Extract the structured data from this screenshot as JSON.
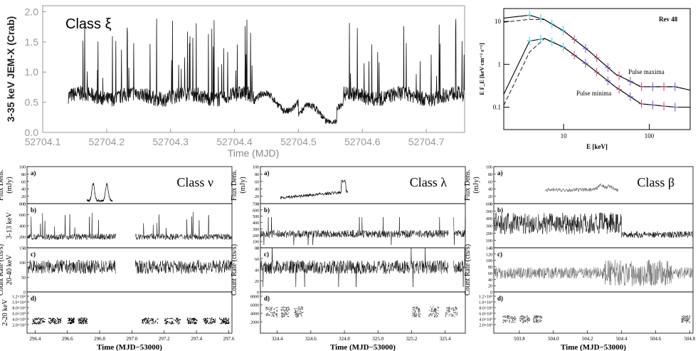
{
  "top_left": {
    "label": "Class ξ",
    "ylabel": "3-35 keV JEM-X (Crab)",
    "xlabel": "Time (MJD)",
    "xticks": [
      "52704.1",
      "52704.2",
      "52704.3",
      "52704.4",
      "52704.5",
      "52704.6",
      "52704.7"
    ],
    "yticks": [
      "0.0",
      "0.5",
      "1.0",
      "1.5",
      "2.0"
    ]
  },
  "top_right": {
    "label": "Rev 48",
    "ylabel": "E F_E [keV cm⁻² s⁻¹]",
    "xlabel": "E [keV]",
    "yticks": [
      "10",
      "1",
      "0.1"
    ],
    "xticks": [
      "10",
      "100"
    ],
    "annot_max": "Pulse maxima",
    "annot_min": "Pulse minima"
  },
  "panels": [
    {
      "class_label": "Class ν",
      "xlabel": "Time (MJD−53000)",
      "xticks": [
        "296.4",
        "296.6",
        "296.8",
        "297.0",
        "297.2",
        "297.4",
        "297.6"
      ],
      "sub_a": "a)",
      "sub_b": "b)",
      "sub_c": "c)",
      "sub_d": "d)",
      "ylab_a1": "Flux Dens.",
      "ylab_a2": "(mJy)",
      "ylab_b": "3-13 keV",
      "ylab_cr": "Count Rate (cts/s)",
      "ylab_c": "20-40 keV",
      "ylab_d": "2-20 keV",
      "yt_a": [
        "100",
        "80",
        "60",
        "40",
        "20",
        "0"
      ],
      "yt_b": [
        "800",
        "600",
        "400",
        "200",
        "0"
      ],
      "yt_c": [
        "150",
        "100",
        "50",
        "0"
      ],
      "yt_d": [
        "1.2×10⁴",
        "1.0×10⁴",
        "8.0×10³",
        "6.0×10³",
        "4.0×10³",
        "2.0×10³"
      ]
    },
    {
      "class_label": "Class λ",
      "xlabel": "Time (MJD−53000)",
      "xticks": [
        "324.4",
        "324.6",
        "324.8",
        "325.0",
        "325.2",
        "325.4"
      ],
      "sub_a": "a)",
      "sub_b": "b)",
      "sub_c": "c)",
      "sub_d": "d)",
      "ylab_a1": "Flux Dens.",
      "ylab_a2": "(mJy)",
      "ylab_cr": "Count Rate (cts/s)",
      "yt_a": [
        "100",
        "80",
        "60",
        "40",
        "20",
        "0"
      ],
      "yt_b": [
        "700",
        "600",
        "500",
        "400",
        "300",
        "200",
        "100",
        "0"
      ],
      "yt_c": [
        "80",
        "60",
        "40",
        "20",
        "0"
      ],
      "yt_d": [
        "8000",
        "6000",
        "4000",
        "2000"
      ]
    },
    {
      "class_label": "Class β",
      "xlabel": "Time (MJD−53000)",
      "xticks": [
        "503.8",
        "504.0",
        "504.2",
        "504.4",
        "504.6",
        "504.8"
      ],
      "sub_a": "a)",
      "sub_b": "b)",
      "sub_c": "c)",
      "sub_d": "d)",
      "ylab_a1": "Flux Dens.",
      "ylab_a2": "(mJy)",
      "ylab_cr": "Count Rate (cts/s)",
      "yt_a": [
        "100",
        "80",
        "60",
        "40",
        "20",
        "0"
      ],
      "yt_b": [
        "600",
        "500",
        "400",
        "300",
        "200",
        "100",
        "0"
      ],
      "yt_c": [
        "140",
        "120",
        "100",
        "80",
        "60",
        "40",
        "20",
        "0"
      ],
      "yt_d": [
        "1.2×10⁴",
        "1.0×10⁴",
        "8.0×10³",
        "6.0×10³",
        "4.0×10³",
        "2.0×10³"
      ]
    }
  ],
  "chart_data": [
    {
      "type": "line",
      "title": "Class ξ",
      "xlabel": "Time (MJD)",
      "ylabel": "3-35 keV JEM-X (Crab)",
      "xlim": [
        52704.1,
        52704.76
      ],
      "ylim": [
        0,
        2.1
      ],
      "series": [
        {
          "x_range": [
            52704.14,
            52704.76
          ],
          "baseline": 0.6,
          "peak_max": 2.0
        }
      ]
    },
    {
      "type": "line",
      "title": "Rev 48",
      "xlabel": "E [keV]",
      "ylabel": "E F_E [keV cm⁻² s⁻¹]",
      "xscale": "log",
      "yscale": "log",
      "xlim": [
        2,
        300
      ],
      "ylim": [
        0.03,
        20
      ],
      "series": [
        {
          "name": "Pulse maxima",
          "x": [
            2,
            4,
            6,
            10,
            20,
            40,
            80,
            200,
            300
          ],
          "y": [
            12,
            14,
            11,
            6,
            2.0,
            0.6,
            0.3,
            0.3,
            0.25
          ]
        },
        {
          "name": "Pulse minima",
          "x": [
            2,
            4,
            6,
            10,
            20,
            40,
            80,
            200,
            300
          ],
          "y": [
            0.2,
            3.5,
            4.0,
            2.5,
            0.9,
            0.3,
            0.12,
            0.1,
            0.1
          ]
        }
      ]
    },
    {
      "type": "line",
      "title": "Class ν",
      "xlabel": "Time (MJD−53000)",
      "xlim": [
        296.35,
        297.62
      ],
      "series": [
        {
          "panel": "a",
          "ylabel": "Flux Dens. (mJy)",
          "ylim": [
            0,
            100
          ],
          "flare_peaks_x": [
            296.76,
            296.84
          ],
          "peak": 50
        },
        {
          "panel": "b",
          "ylabel": "3-13 keV Count Rate (cts/s)",
          "ylim": [
            0,
            800
          ],
          "baseline": 200
        },
        {
          "panel": "c",
          "ylabel": "20-40 keV Count Rate (cts/s)",
          "ylim": [
            0,
            150
          ],
          "baseline": 85
        },
        {
          "panel": "d",
          "ylabel": "2-20 keV Count Rate (cts/s)",
          "ylim": [
            0,
            12000
          ],
          "baseline": 3500
        }
      ]
    },
    {
      "type": "line",
      "title": "Class λ",
      "xlabel": "Time (MJD−53000)",
      "xlim": [
        324.3,
        325.52
      ],
      "series": [
        {
          "panel": "a",
          "ylabel": "Flux Dens. (mJy)",
          "ylim": [
            0,
            100
          ],
          "peak": 50
        },
        {
          "panel": "b",
          "ylabel": "Count Rate (cts/s)",
          "ylim": [
            0,
            700
          ],
          "baseline": 220
        },
        {
          "panel": "c",
          "ylabel": "Count Rate (cts/s)",
          "ylim": [
            0,
            80
          ],
          "baseline": 45
        },
        {
          "panel": "d",
          "ylabel": "Count Rate (cts/s)",
          "ylim": [
            0,
            8000
          ],
          "baseline": 4000
        }
      ]
    },
    {
      "type": "line",
      "title": "Class β",
      "xlabel": "Time (MJD−53000)",
      "xlim": [
        503.65,
        504.82
      ],
      "series": [
        {
          "panel": "a",
          "ylabel": "Flux Dens. (mJy)",
          "ylim": [
            0,
            100
          ],
          "baseline": 35
        },
        {
          "panel": "b",
          "ylabel": "Count Rate (cts/s)",
          "ylim": [
            0,
            600
          ],
          "baseline": 300
        },
        {
          "panel": "c",
          "ylabel": "Count Rate (cts/s)",
          "ylim": [
            0,
            140
          ],
          "baseline": 60
        },
        {
          "panel": "d",
          "ylabel": "Count Rate (cts/s)",
          "ylim": [
            0,
            12000
          ],
          "baseline": 4000
        }
      ]
    }
  ]
}
